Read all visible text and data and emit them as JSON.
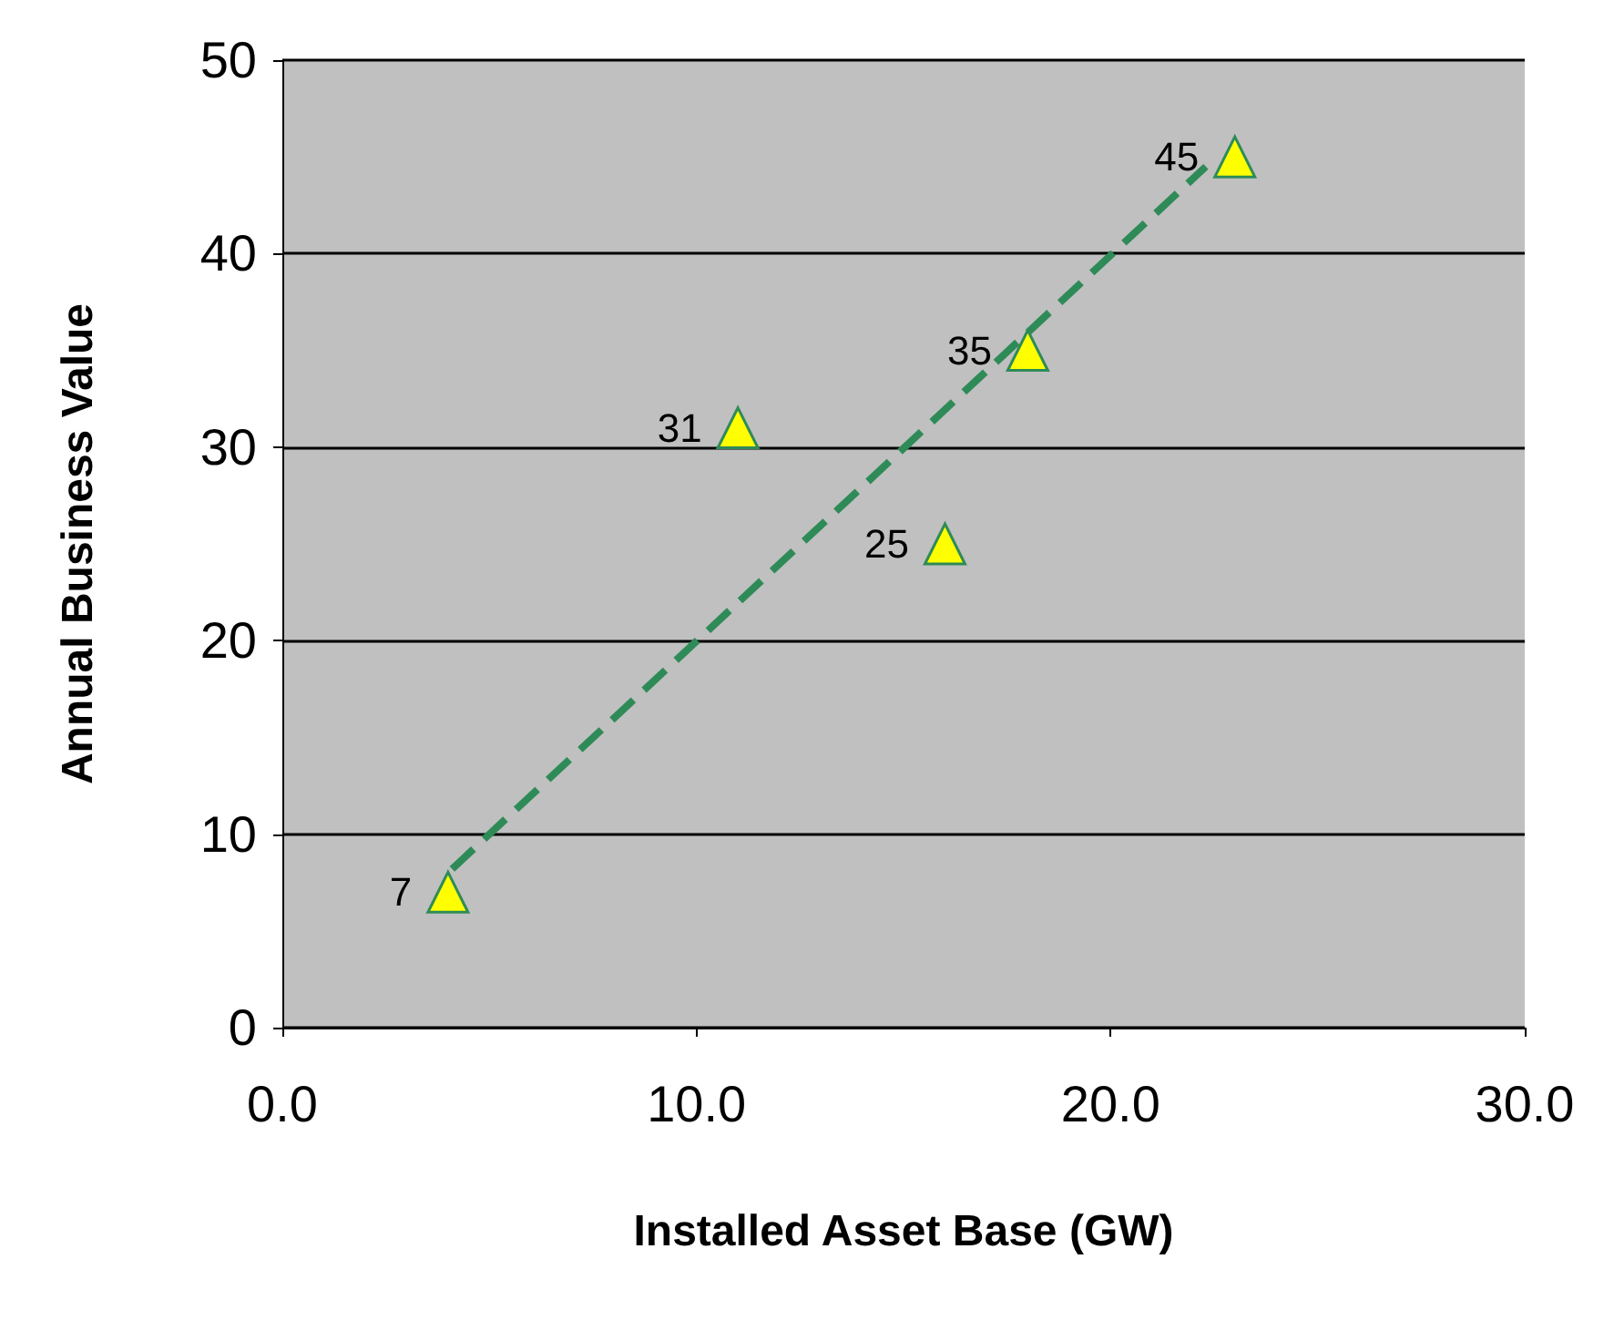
{
  "chart_data": {
    "type": "scatter",
    "xlabel": "Installed Asset Base (GW)",
    "ylabel": "Annual Business Value",
    "xlim": [
      0,
      30
    ],
    "xticks": [
      {
        "value": 0,
        "label": "0.0"
      },
      {
        "value": 10,
        "label": "10.0"
      },
      {
        "value": 20,
        "label": "20.0"
      },
      {
        "value": 30,
        "label": "30.0"
      }
    ],
    "ylim": [
      0,
      50
    ],
    "yticks": [
      0,
      10,
      20,
      30,
      40,
      50
    ],
    "grid": "y",
    "series": [
      {
        "color": "#ffff00",
        "marker": "triangle",
        "x": [
          4,
          11,
          16,
          18,
          23
        ],
        "values": [
          7,
          31,
          25,
          35,
          45
        ],
        "value_labels": [
          "7",
          "31",
          "25",
          "35",
          "45"
        ]
      },
      {
        "type": "line",
        "color": "#2e8b57",
        "marker": "none",
        "line_style": "dashed",
        "x": [
          4.1,
          22.3
        ],
        "values": [
          8.2,
          44.5
        ]
      }
    ]
  }
}
